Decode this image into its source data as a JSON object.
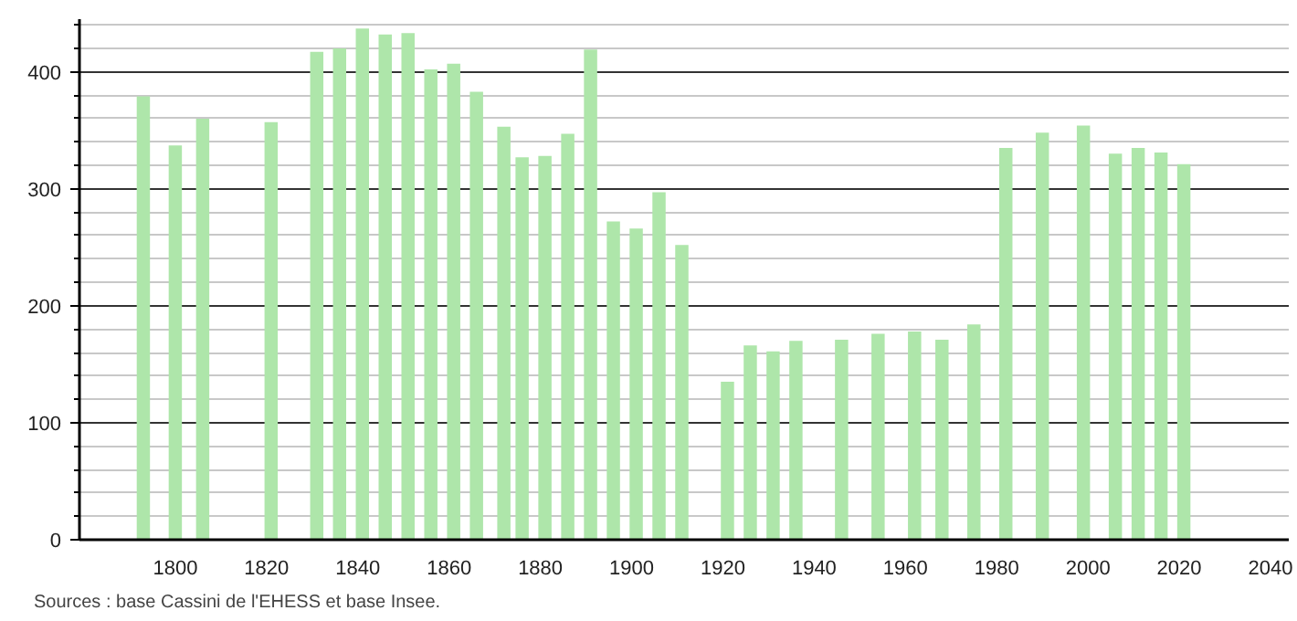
{
  "chart_data": {
    "type": "bar",
    "x": [
      1793,
      1800,
      1806,
      1821,
      1831,
      1836,
      1841,
      1846,
      1851,
      1856,
      1861,
      1866,
      1872,
      1876,
      1881,
      1886,
      1891,
      1896,
      1901,
      1906,
      1911,
      1921,
      1926,
      1931,
      1936,
      1946,
      1954,
      1962,
      1968,
      1975,
      1982,
      1990,
      1999,
      2006,
      2011,
      2016,
      2021
    ],
    "values": [
      379,
      337,
      360,
      357,
      417,
      420,
      437,
      432,
      433,
      402,
      407,
      383,
      353,
      327,
      328,
      347,
      419,
      272,
      266,
      297,
      252,
      135,
      166,
      161,
      170,
      171,
      176,
      178,
      171,
      184,
      335,
      348,
      354,
      330,
      335,
      331,
      321
    ],
    "color": "#aee6aa",
    "xlim": [
      1779,
      2044
    ],
    "ylim": [
      0,
      445
    ],
    "xticks": [
      1800,
      1820,
      1840,
      1860,
      1880,
      1900,
      1920,
      1940,
      1960,
      1980,
      2000,
      2020,
      2040
    ],
    "yticks": [
      0,
      {
        "value": 20,
        "label": null
      },
      {
        "value": 40,
        "label": null
      },
      {
        "value": 60,
        "label": null
      },
      {
        "value": 80,
        "label": null
      },
      100,
      {
        "value": 120,
        "label": null
      },
      {
        "value": 140,
        "label": null
      },
      {
        "value": 160,
        "label": null
      },
      {
        "value": 180,
        "label": null
      },
      200,
      {
        "value": 220,
        "label": null
      },
      {
        "value": 240,
        "label": null
      },
      {
        "value": 260,
        "label": null
      },
      {
        "value": 280,
        "label": null
      },
      300,
      {
        "value": 320,
        "label": null
      },
      {
        "value": 340,
        "label": null
      },
      {
        "value": 360,
        "label": null
      },
      {
        "value": 380,
        "label": null
      },
      400,
      {
        "value": 420,
        "label": null
      },
      {
        "value": 440,
        "label": null
      }
    ],
    "grid": "y",
    "annotations": [
      "Sources : base Cassini de l'EHESS et base Insee."
    ]
  }
}
